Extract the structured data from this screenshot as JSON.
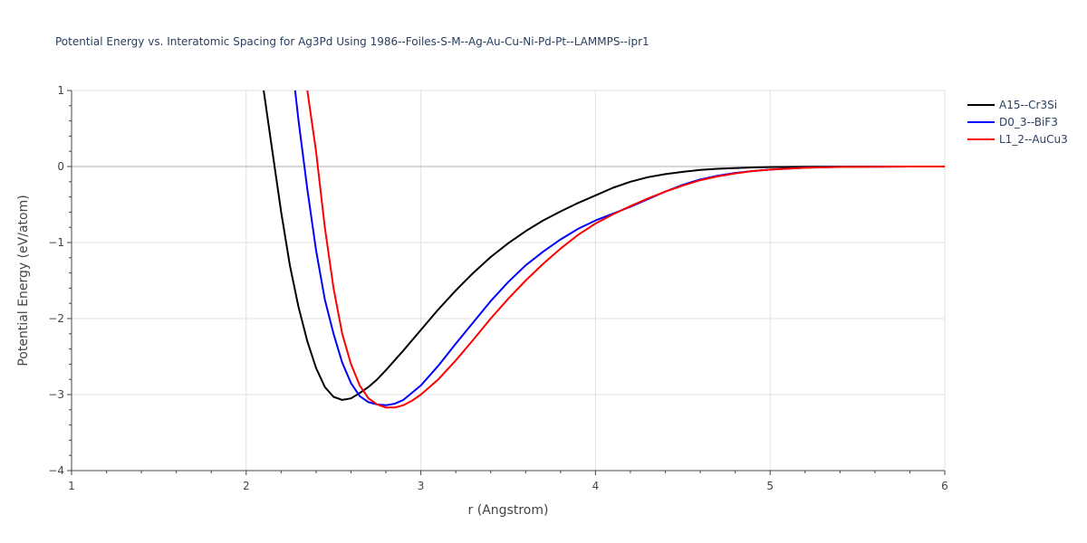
{
  "chart_data": {
    "type": "line",
    "title": "Potential Energy vs. Interatomic Spacing for Ag3Pd Using 1986--Foiles-S-M--Ag-Au-Cu-Ni-Pd-Pt--LAMMPS--ipr1",
    "xlabel": "r (Angstrom)",
    "ylabel": "Potential Energy (eV/atom)",
    "xlim": [
      1,
      6
    ],
    "ylim": [
      -4,
      1
    ],
    "xticks": [
      1,
      2,
      3,
      4,
      5,
      6
    ],
    "yticks": [
      1,
      0,
      -1,
      -2,
      -3,
      -4
    ],
    "ytick_labels": [
      "1",
      "0",
      "−1",
      "−2",
      "−3",
      "−4"
    ],
    "grid": true,
    "legend_position": "top-right",
    "series": [
      {
        "name": "A15--Cr3Si",
        "color": "#000000",
        "x": [
          2.1,
          2.15,
          2.2,
          2.25,
          2.3,
          2.35,
          2.4,
          2.45,
          2.5,
          2.55,
          2.6,
          2.65,
          2.7,
          2.75,
          2.8,
          2.9,
          3.0,
          3.1,
          3.2,
          3.3,
          3.4,
          3.5,
          3.6,
          3.7,
          3.8,
          3.9,
          4.0,
          4.1,
          4.2,
          4.3,
          4.4,
          4.5,
          4.6,
          4.7,
          4.8,
          4.9,
          5.0,
          5.2,
          5.4,
          5.6,
          5.8,
          6.0
        ],
        "y": [
          1.0,
          0.2,
          -0.6,
          -1.3,
          -1.85,
          -2.3,
          -2.65,
          -2.9,
          -3.03,
          -3.07,
          -3.05,
          -2.98,
          -2.9,
          -2.8,
          -2.68,
          -2.42,
          -2.15,
          -1.88,
          -1.63,
          -1.4,
          -1.19,
          -1.01,
          -0.85,
          -0.71,
          -0.59,
          -0.48,
          -0.38,
          -0.28,
          -0.2,
          -0.14,
          -0.1,
          -0.07,
          -0.045,
          -0.03,
          -0.02,
          -0.012,
          -0.007,
          -0.003,
          -0.001,
          0.0,
          0.0,
          0.0
        ]
      },
      {
        "name": "D0_3--BiF3",
        "color": "#0000ff",
        "x": [
          2.28,
          2.3,
          2.35,
          2.4,
          2.45,
          2.5,
          2.55,
          2.6,
          2.65,
          2.7,
          2.75,
          2.8,
          2.85,
          2.9,
          3.0,
          3.1,
          3.2,
          3.3,
          3.4,
          3.5,
          3.6,
          3.7,
          3.8,
          3.9,
          4.0,
          4.1,
          4.2,
          4.3,
          4.4,
          4.5,
          4.6,
          4.7,
          4.8,
          4.9,
          5.0,
          5.2,
          5.4,
          5.6,
          5.8,
          6.0
        ],
        "y": [
          1.0,
          0.6,
          -0.3,
          -1.1,
          -1.75,
          -2.2,
          -2.58,
          -2.85,
          -3.02,
          -3.1,
          -3.13,
          -3.14,
          -3.12,
          -3.07,
          -2.88,
          -2.62,
          -2.33,
          -2.05,
          -1.77,
          -1.52,
          -1.3,
          -1.12,
          -0.96,
          -0.82,
          -0.71,
          -0.62,
          -0.53,
          -0.43,
          -0.33,
          -0.24,
          -0.17,
          -0.12,
          -0.085,
          -0.06,
          -0.04,
          -0.015,
          -0.005,
          -0.002,
          0.0,
          0.0
        ]
      },
      {
        "name": "L1_2--AuCu3",
        "color": "#ff0000",
        "x": [
          2.35,
          2.4,
          2.45,
          2.5,
          2.55,
          2.6,
          2.65,
          2.7,
          2.75,
          2.8,
          2.85,
          2.9,
          2.95,
          3.0,
          3.1,
          3.2,
          3.3,
          3.4,
          3.5,
          3.6,
          3.7,
          3.8,
          3.9,
          4.0,
          4.1,
          4.2,
          4.3,
          4.4,
          4.5,
          4.6,
          4.7,
          4.8,
          4.9,
          5.0,
          5.2,
          5.4,
          5.6,
          5.8,
          6.0
        ],
        "y": [
          1.0,
          0.2,
          -0.8,
          -1.6,
          -2.2,
          -2.6,
          -2.88,
          -3.05,
          -3.13,
          -3.17,
          -3.17,
          -3.14,
          -3.08,
          -3.0,
          -2.8,
          -2.55,
          -2.28,
          -2.0,
          -1.74,
          -1.5,
          -1.28,
          -1.08,
          -0.9,
          -0.75,
          -0.63,
          -0.52,
          -0.42,
          -0.33,
          -0.25,
          -0.18,
          -0.13,
          -0.09,
          -0.06,
          -0.04,
          -0.017,
          -0.006,
          -0.002,
          0.0,
          0.0
        ]
      }
    ]
  }
}
